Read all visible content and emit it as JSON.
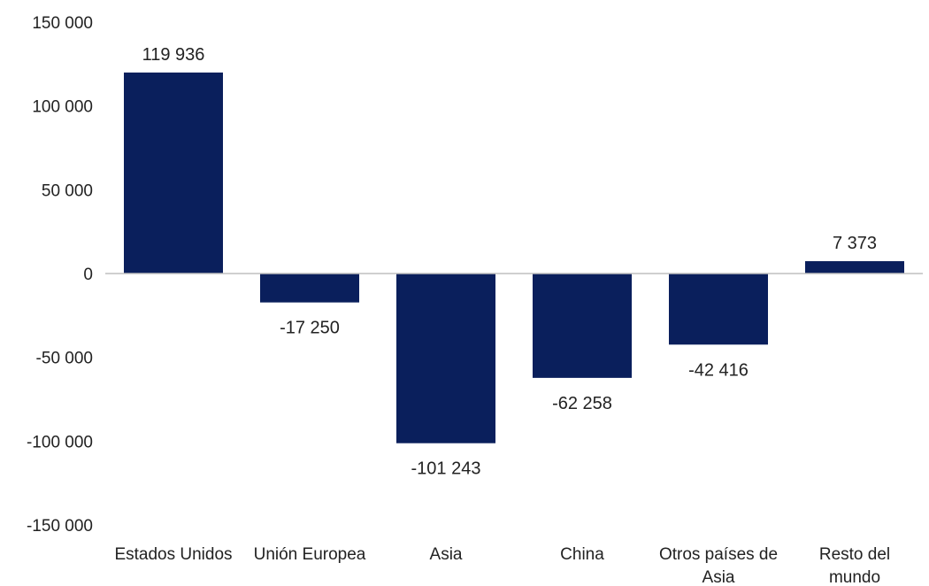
{
  "chart_data": {
    "type": "bar",
    "title": "",
    "xlabel": "",
    "ylabel": "",
    "categories": [
      [
        "Estados Unidos"
      ],
      [
        "Unión Europea"
      ],
      [
        "Asia"
      ],
      [
        "China"
      ],
      [
        "Otros países de",
        "Asia"
      ],
      [
        "Resto del",
        "mundo"
      ]
    ],
    "values": [
      119936,
      -17250,
      -101243,
      -62258,
      -42416,
      7373
    ],
    "data_labels": [
      "119 936",
      "-17 250",
      "-101 243",
      "-62 258",
      "-42 416",
      "7 373"
    ],
    "ylim": [
      -150000,
      150000
    ],
    "yticks": [
      150000,
      100000,
      50000,
      0,
      -50000,
      -100000,
      -150000
    ],
    "ytick_labels": [
      "150 000",
      "100 000",
      "50 000",
      "0",
      "-50 000",
      "-100 000",
      "-150 000"
    ],
    "grid": false,
    "legend": "none",
    "bar_color": "#0a1f5c",
    "axis_color": "#bfbfbf"
  }
}
